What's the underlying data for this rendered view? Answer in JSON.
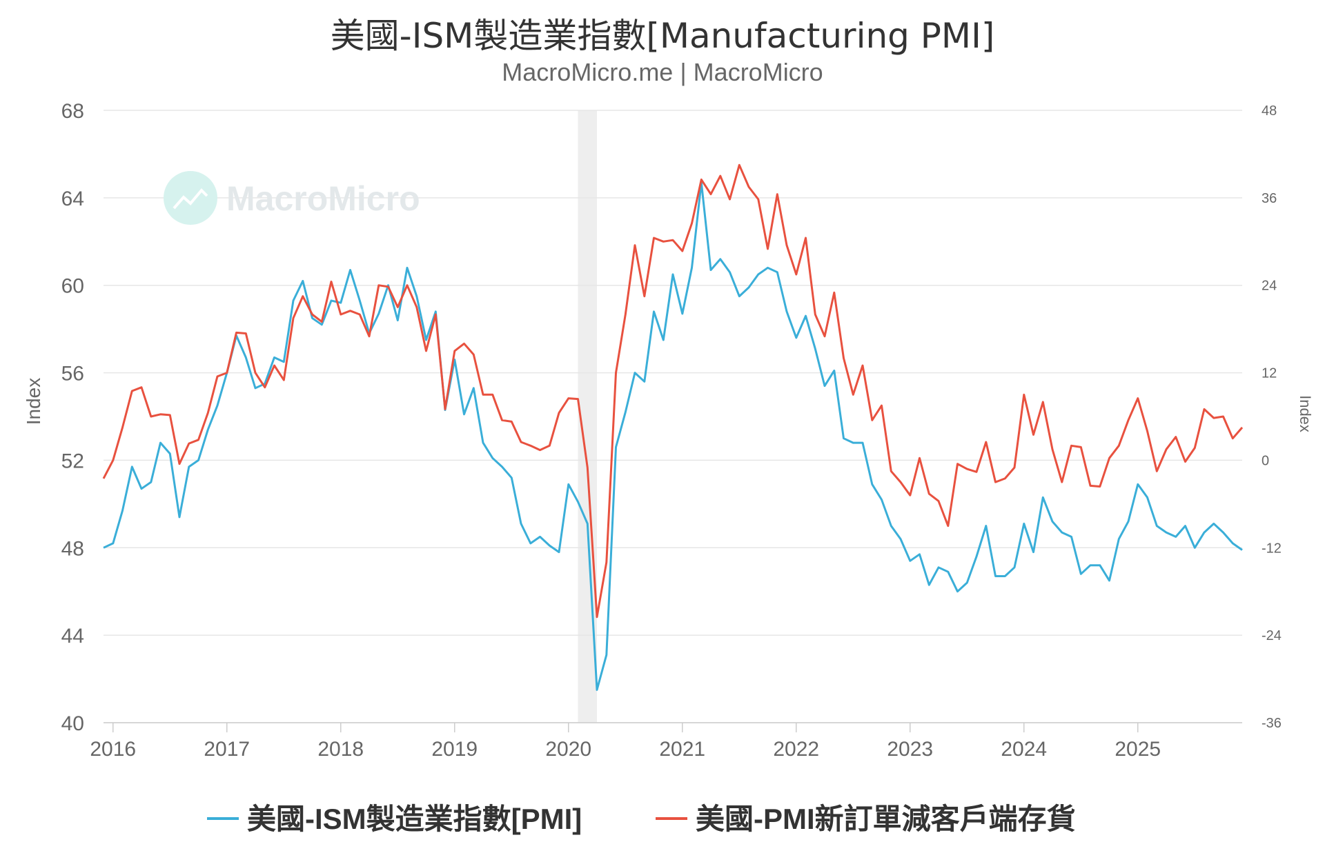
{
  "title": "美國-ISM製造業指數[Manufacturing PMI]",
  "subtitle": "MacroMicro.me | MacroMicro",
  "watermark": "MacroMicro",
  "chart_data": {
    "type": "line",
    "yaxis_left": {
      "label": "Index",
      "min": 40,
      "max": 68,
      "ticks": [
        "40",
        "44",
        "48",
        "52",
        "56",
        "60",
        "64",
        "68"
      ]
    },
    "yaxis_right": {
      "label": "Index",
      "min": -36,
      "max": 48,
      "ticks": [
        "-36",
        "-24",
        "-12",
        "0",
        "12",
        "24",
        "36",
        "48"
      ]
    },
    "xaxis": {
      "ticks": [
        "2016",
        "2017",
        "2018",
        "2019",
        "2020",
        "2021",
        "2022",
        "2023",
        "2024",
        "2025"
      ]
    },
    "x_start": "2015-12",
    "x_end": "2025-12",
    "grid": true,
    "legend_position": "bottom",
    "shaded_region": {
      "from": "2020-02",
      "to": "2020-04"
    },
    "series": [
      {
        "name": "美國-ISM製造業指數[PMI]",
        "axis": "left",
        "color": "#3aaed8",
        "values": [
          48.0,
          48.2,
          49.7,
          51.7,
          50.7,
          51.0,
          52.8,
          52.3,
          49.4,
          51.7,
          52.0,
          53.4,
          54.5,
          56.0,
          57.7,
          56.7,
          55.3,
          55.5,
          56.7,
          56.5,
          59.3,
          60.2,
          58.5,
          58.2,
          59.3,
          59.2,
          60.7,
          59.3,
          57.8,
          58.7,
          60.0,
          58.4,
          60.8,
          59.5,
          57.5,
          58.8,
          54.3,
          56.6,
          54.1,
          55.3,
          52.8,
          52.1,
          51.7,
          51.2,
          49.1,
          48.2,
          48.5,
          48.1,
          47.8,
          50.9,
          50.1,
          49.1,
          41.5,
          43.1,
          52.6,
          54.2,
          56.0,
          55.6,
          58.8,
          57.5,
          60.5,
          58.7,
          60.8,
          64.7,
          60.7,
          61.2,
          60.6,
          59.5,
          59.9,
          60.5,
          60.8,
          60.6,
          58.8,
          57.6,
          58.6,
          57.1,
          55.4,
          56.1,
          53.0,
          52.8,
          52.8,
          50.9,
          50.2,
          49.0,
          48.4,
          47.4,
          47.7,
          46.3,
          47.1,
          46.9,
          46.0,
          46.4,
          47.6,
          49.0,
          46.7,
          46.7,
          47.1,
          49.1,
          47.8,
          50.3,
          49.2,
          48.7,
          48.5,
          46.8,
          47.2,
          47.2,
          46.5,
          48.4,
          49.2,
          50.9,
          50.3,
          49.0,
          48.7,
          48.5,
          49.0,
          48.0,
          48.7,
          49.1,
          48.7,
          48.2,
          47.9
        ]
      },
      {
        "name": "美國-PMI新訂單減客戶端存貨",
        "axis": "right",
        "color": "#e8513f",
        "values": [
          -2.5,
          0.0,
          4.5,
          9.5,
          10.0,
          6.0,
          6.3,
          6.2,
          -0.5,
          2.3,
          2.8,
          6.5,
          11.5,
          12.0,
          17.5,
          17.4,
          12.0,
          10.0,
          13.0,
          11.0,
          19.5,
          22.5,
          20.0,
          19.0,
          24.5,
          20.0,
          20.5,
          20.0,
          17.0,
          24.0,
          23.8,
          21.0,
          24.0,
          21.0,
          15.0,
          20.0,
          7.0,
          15.0,
          16.0,
          14.5,
          9.0,
          9.0,
          5.5,
          5.3,
          2.5,
          2.0,
          1.4,
          2.0,
          6.5,
          8.5,
          8.4,
          -1.0,
          -21.5,
          -14.0,
          12.0,
          20.0,
          29.5,
          22.5,
          30.5,
          30.0,
          30.2,
          28.7,
          32.5,
          38.5,
          36.5,
          39.0,
          35.8,
          40.5,
          37.5,
          35.8,
          29.0,
          36.5,
          29.5,
          25.5,
          30.5,
          20.0,
          17.0,
          23.0,
          14.0,
          9.0,
          13.0,
          5.5,
          7.5,
          -1.5,
          -3.0,
          -4.8,
          0.3,
          -4.6,
          -5.6,
          -9.0,
          -0.5,
          -1.2,
          -1.6,
          2.5,
          -3.0,
          -2.5,
          -1.0,
          9.0,
          3.5,
          8.0,
          1.5,
          -3.0,
          2.0,
          1.8,
          -3.5,
          -3.6,
          0.3,
          2.0,
          5.5,
          8.5,
          4.0,
          -1.5,
          1.5,
          3.2,
          -0.2,
          1.7,
          7.0,
          5.8,
          6.0,
          3.0,
          4.5
        ]
      }
    ]
  }
}
